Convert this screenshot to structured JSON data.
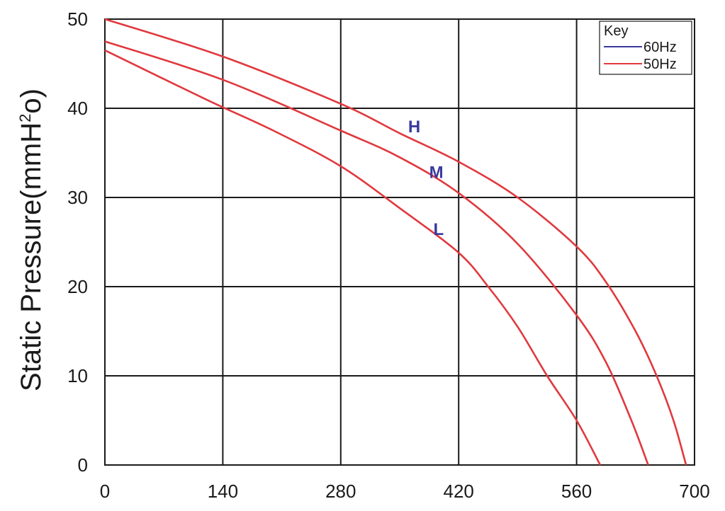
{
  "chart_data": {
    "type": "line",
    "title": "",
    "xlabel": "",
    "ylabel": {
      "main": "Static Pressure(mmH",
      "superscript": "2",
      "end": "o)"
    },
    "xlim": [
      0,
      700
    ],
    "ylim": [
      0,
      50
    ],
    "x_ticks": [
      "0",
      "140",
      "280",
      "420",
      "560",
      "700"
    ],
    "y_ticks": [
      "0",
      "10",
      "20",
      "30",
      "40",
      "50"
    ],
    "grid": true,
    "legend": {
      "title": "Key",
      "placement": "top-right",
      "entries": [
        {
          "label": "60Hz",
          "color": "#3a3a9e"
        },
        {
          "label": "50Hz",
          "color": "#e0393e"
        }
      ]
    },
    "series": [
      {
        "label": "H",
        "color": "#e0393e",
        "points": [
          [
            0,
            50
          ],
          [
            140,
            45.8
          ],
          [
            280,
            40.5
          ],
          [
            350,
            37.2
          ],
          [
            420,
            34
          ],
          [
            490,
            30
          ],
          [
            560,
            24.5
          ],
          [
            595,
            20.5
          ],
          [
            630,
            15
          ],
          [
            655,
            10
          ],
          [
            675,
            5
          ],
          [
            690,
            0
          ]
        ]
      },
      {
        "label": "M",
        "color": "#e0393e",
        "points": [
          [
            0,
            47.5
          ],
          [
            140,
            43.2
          ],
          [
            280,
            37.5
          ],
          [
            350,
            34.5
          ],
          [
            420,
            30.5
          ],
          [
            490,
            24.8
          ],
          [
            560,
            16.8
          ],
          [
            595,
            11.5
          ],
          [
            625,
            5
          ],
          [
            645,
            0
          ]
        ]
      },
      {
        "label": "L",
        "color": "#e0393e",
        "points": [
          [
            0,
            46.5
          ],
          [
            120,
            41
          ],
          [
            200,
            37.5
          ],
          [
            280,
            33.5
          ],
          [
            350,
            28.8
          ],
          [
            420,
            23.8
          ],
          [
            455,
            20
          ],
          [
            490,
            15.5
          ],
          [
            525,
            10
          ],
          [
            560,
            5
          ],
          [
            588,
            0
          ]
        ]
      }
    ],
    "curve_labels": [
      {
        "text": "H",
        "x": 360,
        "y": 37.3,
        "color": "#3a3a9e"
      },
      {
        "text": "M",
        "x": 385,
        "y": 32.2,
        "color": "#3a3a9e"
      },
      {
        "text": "L",
        "x": 390,
        "y": 25.8,
        "color": "#3a3a9e"
      }
    ]
  }
}
